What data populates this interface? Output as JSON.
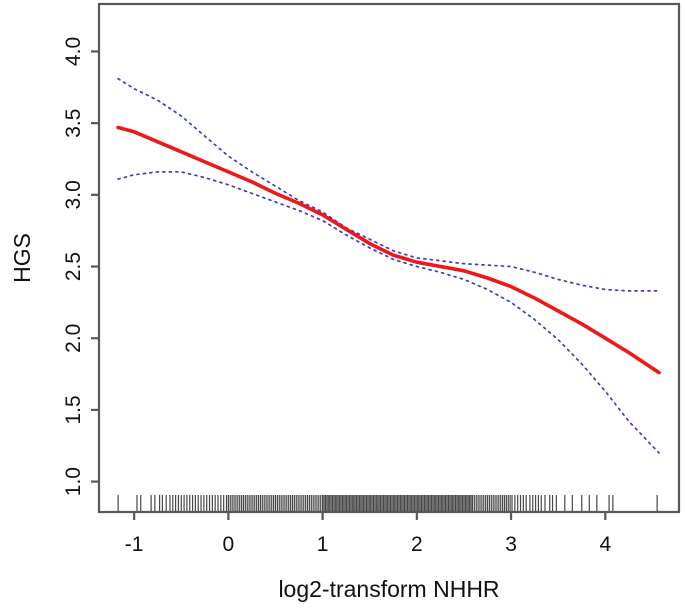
{
  "figure": {
    "kind": "statistical-plot",
    "background": "#ffffff"
  },
  "colors": {
    "fit_red": "#ef1717",
    "ci_blue": "#3b3bd1",
    "axis_gray": "#54585b",
    "text_black": "#111111",
    "rug_black": "#1f1f1f"
  },
  "chart_data": {
    "type": "line",
    "title": "",
    "xlabel": "log2-transform NHHR",
    "ylabel": "HGS",
    "grid": false,
    "legend": "none",
    "x_axis": {
      "range": [
        -1.373,
        4.782
      ],
      "ticks": [
        -1,
        0,
        1,
        2,
        3,
        4
      ],
      "tick_labels": [
        "-1",
        "0",
        "1",
        "2",
        "3",
        "4"
      ]
    },
    "y_axis": {
      "range": [
        0.788,
        4.331
      ],
      "ticks": [
        1.0,
        1.5,
        2.0,
        2.5,
        3.0,
        3.5,
        4.0
      ],
      "tick_labels": [
        "1.0",
        "1.5",
        "2.0",
        "2.5",
        "3.0",
        "3.5",
        "4.0"
      ]
    },
    "x": [
      -1.17,
      -1.0,
      -0.75,
      -0.5,
      -0.25,
      0.0,
      0.25,
      0.5,
      0.75,
      1.0,
      1.25,
      1.5,
      1.75,
      2.0,
      2.25,
      2.5,
      2.75,
      3.0,
      3.25,
      3.5,
      3.75,
      4.0,
      4.25,
      4.57
    ],
    "series": [
      {
        "name": "fitted-smooth",
        "style": "solid",
        "color_key": "fit_red",
        "width": 3.6,
        "values": [
          3.47,
          3.44,
          3.37,
          3.3,
          3.23,
          3.16,
          3.09,
          3.01,
          2.94,
          2.86,
          2.76,
          2.66,
          2.58,
          2.53,
          2.5,
          2.47,
          2.42,
          2.36,
          2.28,
          2.19,
          2.1,
          2.0,
          1.9,
          1.76
        ]
      },
      {
        "name": "ci-upper",
        "style": "dotted",
        "color_key": "ci_blue",
        "width": 1.7,
        "values": [
          3.81,
          3.74,
          3.66,
          3.55,
          3.41,
          3.27,
          3.16,
          3.06,
          2.96,
          2.88,
          2.77,
          2.69,
          2.61,
          2.56,
          2.54,
          2.52,
          2.51,
          2.5,
          2.46,
          2.41,
          2.37,
          2.34,
          2.33,
          2.33
        ]
      },
      {
        "name": "ci-lower",
        "style": "dotted",
        "color_key": "ci_blue",
        "width": 1.7,
        "values": [
          3.11,
          3.14,
          3.16,
          3.16,
          3.12,
          3.07,
          3.01,
          2.95,
          2.89,
          2.82,
          2.72,
          2.63,
          2.55,
          2.5,
          2.46,
          2.41,
          2.34,
          2.25,
          2.13,
          1.99,
          1.82,
          1.63,
          1.42,
          1.2
        ]
      }
    ],
    "rug": {
      "position": "bottom",
      "x_values": [
        -1.17,
        -0.97,
        -0.93,
        -0.82,
        -0.78,
        -0.73,
        -0.7,
        -0.66,
        -0.62,
        -0.59,
        -0.56,
        -0.53,
        -0.5,
        -0.47,
        -0.44,
        -0.41,
        -0.38,
        -0.35,
        -0.32,
        -0.29,
        -0.26,
        -0.23,
        -0.2,
        -0.17,
        -0.14,
        -0.11,
        -0.08,
        -0.05,
        -0.02,
        0.0,
        0.02,
        0.04,
        0.06,
        0.08,
        0.1,
        0.12,
        0.14,
        0.16,
        0.18,
        0.2,
        0.22,
        0.24,
        0.26,
        0.28,
        0.3,
        0.32,
        0.34,
        0.36,
        0.38,
        0.4,
        0.42,
        0.44,
        0.46,
        0.48,
        0.5,
        0.52,
        0.54,
        0.56,
        0.58,
        0.6,
        0.62,
        0.64,
        0.66,
        0.68,
        0.7,
        0.72,
        0.74,
        0.76,
        0.78,
        0.8,
        0.82,
        0.84,
        0.86,
        0.88,
        0.9,
        0.92,
        0.94,
        0.96,
        0.98,
        1.0,
        1.015,
        1.03,
        1.045,
        1.06,
        1.075,
        1.09,
        1.105,
        1.12,
        1.135,
        1.15,
        1.165,
        1.18,
        1.195,
        1.21,
        1.225,
        1.24,
        1.255,
        1.27,
        1.285,
        1.3,
        1.315,
        1.33,
        1.345,
        1.36,
        1.375,
        1.39,
        1.405,
        1.42,
        1.435,
        1.45,
        1.465,
        1.48,
        1.495,
        1.51,
        1.525,
        1.54,
        1.555,
        1.57,
        1.585,
        1.6,
        1.615,
        1.63,
        1.645,
        1.66,
        1.675,
        1.69,
        1.705,
        1.72,
        1.735,
        1.75,
        1.765,
        1.78,
        1.795,
        1.81,
        1.825,
        1.84,
        1.855,
        1.87,
        1.885,
        1.9,
        1.915,
        1.93,
        1.945,
        1.96,
        1.975,
        1.99,
        2.005,
        2.02,
        2.035,
        2.05,
        2.065,
        2.08,
        2.095,
        2.11,
        2.125,
        2.14,
        2.155,
        2.17,
        2.185,
        2.2,
        2.215,
        2.23,
        2.245,
        2.26,
        2.275,
        2.29,
        2.305,
        2.32,
        2.335,
        2.35,
        2.365,
        2.38,
        2.395,
        2.41,
        2.425,
        2.44,
        2.455,
        2.47,
        2.485,
        2.5,
        2.515,
        2.53,
        2.545,
        2.56,
        2.575,
        2.59,
        2.61,
        2.63,
        2.65,
        2.67,
        2.69,
        2.71,
        2.73,
        2.75,
        2.77,
        2.79,
        2.81,
        2.83,
        2.85,
        2.87,
        2.89,
        2.91,
        2.93,
        2.95,
        2.97,
        2.99,
        3.01,
        3.04,
        3.07,
        3.1,
        3.13,
        3.16,
        3.2,
        3.23,
        3.26,
        3.29,
        3.32,
        3.36,
        3.41,
        3.44,
        3.48,
        3.57,
        3.65,
        3.75,
        3.83,
        3.91,
        4.04,
        4.08,
        4.55
      ]
    }
  }
}
